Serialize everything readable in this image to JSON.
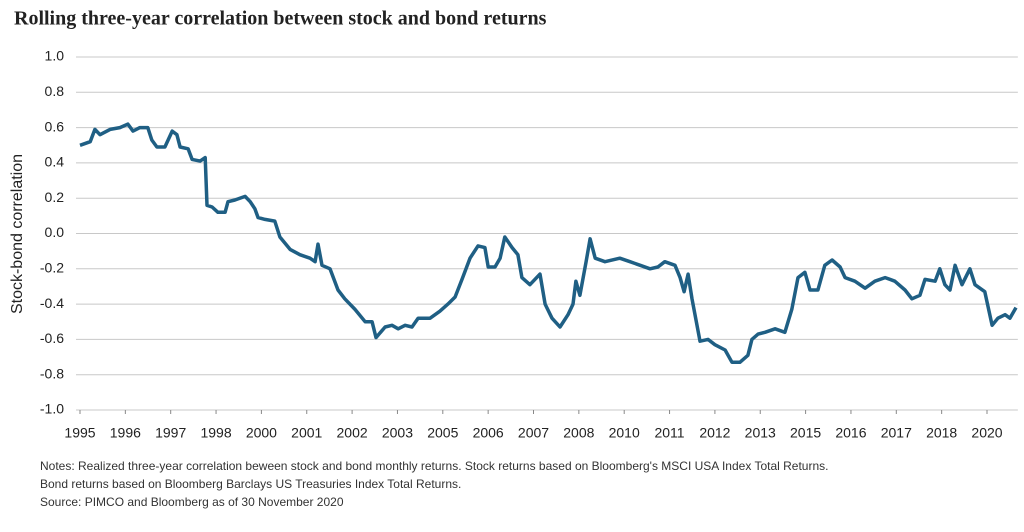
{
  "chart_data": {
    "type": "line",
    "title": "Rolling three-year correlation between stock and bond returns",
    "y_label": "Stock-bond correlation",
    "notes": [
      "Notes: Realized three-year correlation beween stock and bond monthly returns. Stock returns based on Bloomberg's MSCI USA  Index Total Returns.",
      "Bond returns based on Bloomberg Barclays US Treasuries Index Total Returns.",
      "Source: PIMCO and Bloomberg as of 30 November 2020"
    ],
    "xlim": [
      1995,
      2020.85
    ],
    "xticks": [
      1995,
      {
        "value": 1996.25,
        "label": "1996"
      },
      {
        "value": 1997.5,
        "label": "1997"
      },
      {
        "value": 1998.75,
        "label": "1998"
      },
      2000,
      {
        "value": 2001.25,
        "label": "2001"
      },
      {
        "value": 2002.5,
        "label": "2002"
      },
      {
        "value": 2003.75,
        "label": "2003"
      },
      2005,
      {
        "value": 2006.25,
        "label": "2006"
      },
      {
        "value": 2007.5,
        "label": "2007"
      },
      {
        "value": 2008.75,
        "label": "2008"
      },
      2010,
      {
        "value": 2011.25,
        "label": "2011"
      },
      {
        "value": 2012.5,
        "label": "2012"
      },
      {
        "value": 2013.75,
        "label": "2013"
      },
      2015,
      {
        "value": 2016.25,
        "label": "2016"
      },
      {
        "value": 2017.5,
        "label": "2017"
      },
      {
        "value": 2018.75,
        "label": "2018"
      },
      2020
    ],
    "ylim": [
      -1.0,
      1.0
    ],
    "yticks": [
      {
        "value": 1.0,
        "label": "1.0"
      },
      0.8,
      0.6,
      0.4,
      0.2,
      {
        "value": 0.0,
        "label": "0.0"
      },
      -0.2,
      -0.4,
      -0.6,
      -0.8,
      {
        "value": -1.0,
        "label": "-1.0"
      }
    ],
    "grid": true,
    "x": [
      1995.0,
      1995.28,
      1995.41,
      1995.55,
      1995.83,
      1996.1,
      1996.32,
      1996.46,
      1996.65,
      1996.87,
      1996.98,
      1997.12,
      1997.34,
      1997.54,
      1997.67,
      1997.76,
      1997.98,
      1998.09,
      1998.31,
      1998.45,
      1998.5,
      1998.64,
      1998.8,
      1999.0,
      1999.08,
      1999.27,
      1999.55,
      1999.69,
      1999.82,
      1999.91,
      2000.1,
      2000.37,
      2000.51,
      2000.79,
      2001.06,
      2001.34,
      2001.48,
      2001.56,
      2001.67,
      2001.89,
      2002.11,
      2002.3,
      2002.58,
      2002.86,
      2003.05,
      2003.16,
      2003.41,
      2003.6,
      2003.77,
      2003.96,
      2004.15,
      2004.32,
      2004.65,
      2004.92,
      2005.14,
      2005.34,
      2005.53,
      2005.75,
      2005.97,
      2006.16,
      2006.25,
      2006.44,
      2006.58,
      2006.71,
      2006.91,
      2007.07,
      2007.18,
      2007.4,
      2007.68,
      2007.82,
      2008.01,
      2008.23,
      2008.45,
      2008.59,
      2008.67,
      2008.78,
      2008.95,
      2009.06,
      2009.2,
      2009.47,
      2009.88,
      2010.16,
      2010.44,
      2010.71,
      2010.93,
      2011.12,
      2011.4,
      2011.54,
      2011.65,
      2011.76,
      2011.87,
      2012.09,
      2012.31,
      2012.5,
      2012.78,
      2012.97,
      2013.19,
      2013.41,
      2013.52,
      2013.69,
      2013.88,
      2014.16,
      2014.43,
      2014.62,
      2014.79,
      2014.98,
      2015.12,
      2015.34,
      2015.53,
      2015.73,
      2015.95,
      2016.09,
      2016.36,
      2016.64,
      2016.91,
      2017.19,
      2017.46,
      2017.74,
      2017.93,
      2018.15,
      2018.29,
      2018.57,
      2018.7,
      2018.84,
      2018.98,
      2019.12,
      2019.31,
      2019.53,
      2019.67,
      2019.94,
      2020.14,
      2020.3,
      2020.5,
      2020.63,
      2020.8
    ],
    "series": [
      {
        "name": "Stock-bond correlation",
        "color": "#1f5f84",
        "values": [
          0.5,
          0.52,
          0.59,
          0.56,
          0.59,
          0.6,
          0.62,
          0.58,
          0.6,
          0.6,
          0.53,
          0.49,
          0.49,
          0.58,
          0.56,
          0.49,
          0.48,
          0.42,
          0.41,
          0.43,
          0.16,
          0.15,
          0.12,
          0.12,
          0.18,
          0.19,
          0.21,
          0.18,
          0.14,
          0.09,
          0.08,
          0.07,
          -0.02,
          -0.09,
          -0.12,
          -0.14,
          -0.16,
          -0.06,
          -0.18,
          -0.2,
          -0.32,
          -0.37,
          -0.43,
          -0.5,
          -0.5,
          -0.59,
          -0.53,
          -0.52,
          -0.54,
          -0.52,
          -0.53,
          -0.48,
          -0.48,
          -0.44,
          -0.4,
          -0.36,
          -0.26,
          -0.14,
          -0.07,
          -0.08,
          -0.19,
          -0.19,
          -0.14,
          -0.02,
          -0.08,
          -0.12,
          -0.25,
          -0.29,
          -0.23,
          -0.4,
          -0.48,
          -0.53,
          -0.46,
          -0.4,
          -0.27,
          -0.35,
          -0.16,
          -0.03,
          -0.14,
          -0.16,
          -0.14,
          -0.16,
          -0.18,
          -0.2,
          -0.19,
          -0.16,
          -0.18,
          -0.25,
          -0.33,
          -0.23,
          -0.37,
          -0.61,
          -0.6,
          -0.63,
          -0.66,
          -0.73,
          -0.73,
          -0.69,
          -0.6,
          -0.57,
          -0.56,
          -0.54,
          -0.56,
          -0.43,
          -0.25,
          -0.22,
          -0.32,
          -0.32,
          -0.18,
          -0.15,
          -0.19,
          -0.25,
          -0.27,
          -0.31,
          -0.27,
          -0.25,
          -0.27,
          -0.32,
          -0.37,
          -0.35,
          -0.26,
          -0.27,
          -0.2,
          -0.29,
          -0.32,
          -0.18,
          -0.29,
          -0.2,
          -0.29,
          -0.33,
          -0.52,
          -0.48,
          -0.46,
          -0.48,
          -0.42
        ]
      }
    ]
  }
}
